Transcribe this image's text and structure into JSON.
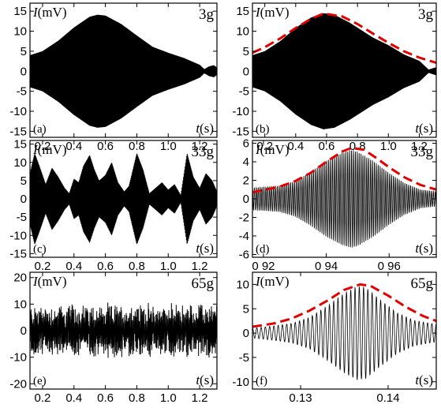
{
  "chart_data": [
    {
      "panel": "(a)",
      "type": "line",
      "label": "3g",
      "ylabel_var": "I",
      "ylabel_unit": "(mV)",
      "xlabel_var": "t",
      "xlabel_unit": "(s)",
      "xlim": [
        0.12,
        1.31
      ],
      "ylim": [
        -16.5,
        17
      ],
      "xticks": [
        0.2,
        0.4,
        0.6,
        0.8,
        1.0,
        1.2
      ],
      "xticklabels": [
        "0.2",
        "0.4",
        "0.6",
        "0.8",
        "1.0",
        "1.2"
      ],
      "yticks": [
        -15,
        -10,
        -5,
        0,
        5,
        10,
        15
      ],
      "yticklabels": [
        "-15",
        "-10",
        "-5",
        "0",
        "5",
        "10",
        "15"
      ],
      "signal": {
        "kind": "dense",
        "envelope_t": [
          0.12,
          0.2,
          0.3,
          0.4,
          0.5,
          0.55,
          0.6,
          0.7,
          0.8,
          0.9,
          1.0,
          1.1,
          1.2,
          1.23,
          1.26,
          1.29,
          1.31
        ],
        "envelope_a": [
          4,
          5,
          7.6,
          10.9,
          13.6,
          14.1,
          13.9,
          11.8,
          8.9,
          6.1,
          4.6,
          3.3,
          1.6,
          0.5,
          1.2,
          1.5,
          0.9
        ]
      }
    },
    {
      "panel": "(b)",
      "type": "line",
      "label": "3g",
      "ylabel_var": "I",
      "ylabel_unit": "(mV)",
      "xlabel_var": "t",
      "xlabel_unit": "(s)",
      "xlim": [
        0.12,
        1.31
      ],
      "ylim": [
        -16.5,
        17
      ],
      "xticks": [
        0.2,
        0.4,
        0.6,
        0.8,
        1.0,
        1.2
      ],
      "xticklabels": [
        "0.2",
        "0.4",
        "0.6",
        "0.8",
        "1.0",
        "1.2"
      ],
      "yticks": [
        -15,
        -10,
        -5,
        0,
        5,
        10,
        15
      ],
      "yticklabels": [
        "-15",
        "-10",
        "-5",
        "0",
        "5",
        "10",
        "15"
      ],
      "signal": {
        "kind": "dense",
        "envelope_t": [
          0.12,
          0.2,
          0.3,
          0.4,
          0.5,
          0.58,
          0.65,
          0.75,
          0.9,
          1.0,
          1.1,
          1.2,
          1.26,
          1.31
        ],
        "envelope_a": [
          4,
          5,
          7.5,
          10.8,
          13.4,
          14.5,
          14.1,
          12.1,
          8.4,
          6.5,
          4.2,
          2.6,
          0.4,
          1.0
        ]
      },
      "fit": {
        "color": "#e00000",
        "x": [
          0.12,
          0.2,
          0.3,
          0.4,
          0.5,
          0.58,
          0.7,
          0.8,
          0.9,
          1.0,
          1.1,
          1.2,
          1.31
        ],
        "y": [
          4.6,
          6.0,
          8.2,
          10.8,
          13.1,
          14.4,
          13.7,
          11.8,
          9.4,
          7.1,
          5.0,
          3.4,
          2.1
        ]
      }
    },
    {
      "panel": "(c)",
      "type": "line",
      "label": "33g",
      "ylabel_var": "I",
      "ylabel_unit": "(mV)",
      "xlabel_var": "t",
      "xlabel_unit": "(s)",
      "xlim": [
        0.12,
        1.31
      ],
      "ylim": [
        -16,
        16
      ],
      "xticks": [
        0.2,
        0.4,
        0.6,
        0.8,
        1.0,
        1.2
      ],
      "xticklabels": [
        "0.2",
        "0.4",
        "0.6",
        "0.8",
        "1.0",
        "1.2"
      ],
      "yticks": [
        -15,
        -10,
        -5,
        0,
        5,
        10,
        15
      ],
      "yticklabels": [
        "-15",
        "-10",
        "-5",
        "0",
        "5",
        "10",
        "15"
      ],
      "signal": {
        "kind": "dense",
        "envelope_t": [
          0.12,
          0.15,
          0.18,
          0.22,
          0.26,
          0.3,
          0.34,
          0.37,
          0.4,
          0.43,
          0.46,
          0.5,
          0.53,
          0.56,
          0.6,
          0.64,
          0.68,
          0.72,
          0.75,
          0.8,
          0.84,
          0.88,
          0.92,
          0.96,
          1.0,
          1.04,
          1.08,
          1.12,
          1.16,
          1.2,
          1.24,
          1.28,
          1.31
        ],
        "envelope_a": [
          7,
          12.5,
          9,
          4,
          8.5,
          6,
          3,
          1.5,
          5.5,
          4.5,
          9,
          12,
          8,
          5,
          6.5,
          10,
          4.5,
          2,
          3.5,
          12.5,
          8,
          1.5,
          3,
          4.5,
          2.5,
          4,
          1,
          12.5,
          6,
          3,
          7,
          5,
          2
        ]
      }
    },
    {
      "panel": "(d)",
      "type": "line",
      "label": "33g",
      "ylabel_var": "I",
      "ylabel_unit": "(mV)",
      "xlabel_var": "t",
      "xlabel_unit": "(s)",
      "xlim": [
        0.9165,
        0.975
      ],
      "ylim": [
        -6.3,
        6.3
      ],
      "xticks": [
        0.92,
        0.94,
        0.96
      ],
      "xticklabels": [
        "0 92",
        "0 94",
        "0 96"
      ],
      "yticks": [
        -6,
        -4,
        -2,
        0,
        2,
        4,
        6
      ],
      "yticklabels": [
        "-6",
        "-4",
        "-2",
        "0",
        "2",
        "4",
        "6"
      ],
      "signal": {
        "kind": "oscillation",
        "freq": 1650,
        "envelope_t": [
          0.9165,
          0.925,
          0.93,
          0.935,
          0.94,
          0.945,
          0.948,
          0.95,
          0.955,
          0.96,
          0.965,
          0.97,
          0.975
        ],
        "envelope_a": [
          1.2,
          1.4,
          1.9,
          2.9,
          4.1,
          5.0,
          5.3,
          5.1,
          4.1,
          2.8,
          1.7,
          1.0,
          0.8
        ]
      },
      "fit": {
        "color": "#e00000",
        "x": [
          0.9165,
          0.925,
          0.93,
          0.935,
          0.94,
          0.945,
          0.948,
          0.952,
          0.956,
          0.96,
          0.965,
          0.97,
          0.975
        ],
        "y": [
          0.7,
          1.3,
          1.9,
          2.8,
          4.0,
          5.1,
          5.5,
          5.3,
          4.4,
          3.4,
          2.3,
          1.5,
          1.0
        ]
      }
    },
    {
      "panel": "(e)",
      "type": "line",
      "label": "65g",
      "ylabel_var": "I",
      "ylabel_unit": "(mV)",
      "xlabel_var": "t",
      "xlabel_unit": "(s)",
      "xlim": [
        0.12,
        1.31
      ],
      "ylim": [
        -22,
        22
      ],
      "xticks": [
        0.2,
        0.4,
        0.6,
        0.8,
        1.0,
        1.2
      ],
      "xticklabels": [
        "0.2",
        "0.4",
        "0.6",
        "0.8",
        "1.0",
        "1.2"
      ],
      "yticks": [
        -20,
        -10,
        0,
        10,
        20
      ],
      "yticklabels": [
        "-20",
        "-10",
        "0",
        "10",
        "20"
      ],
      "signal": {
        "kind": "noisy",
        "envelope_t": [
          0.12,
          1.31
        ],
        "envelope_a": [
          8,
          8
        ]
      }
    },
    {
      "panel": "(f)",
      "type": "line",
      "label": "65g",
      "ylabel_var": "I",
      "ylabel_unit": "(mV)",
      "xlabel_var": "t",
      "xlabel_unit": "(s)",
      "xlim": [
        0.1245,
        0.1455
      ],
      "ylim": [
        -11.5,
        12.5
      ],
      "xticks": [
        0.13,
        0.14
      ],
      "xticklabels": [
        "0.13",
        "0.14"
      ],
      "yticks": [
        -10,
        -5,
        0,
        5,
        10
      ],
      "yticklabels": [
        "-10",
        "-5",
        "0",
        "5",
        "10"
      ],
      "signal": {
        "kind": "oscillation",
        "freq": 2050,
        "envelope_t": [
          0.1245,
          0.127,
          0.129,
          0.131,
          0.133,
          0.135,
          0.1365,
          0.1375,
          0.139,
          0.141,
          0.143,
          0.1455
        ],
        "envelope_a": [
          1.0,
          1.5,
          2.0,
          3.2,
          5.5,
          8.2,
          9.6,
          9.3,
          7.0,
          4.2,
          2.6,
          1.8
        ]
      },
      "fit": {
        "color": "#e00000",
        "x": [
          0.1245,
          0.127,
          0.129,
          0.131,
          0.133,
          0.135,
          0.1368,
          0.138,
          0.14,
          0.142,
          0.144,
          0.1455
        ],
        "y": [
          1.3,
          2.0,
          3.0,
          4.6,
          6.6,
          8.9,
          10.0,
          9.7,
          7.7,
          5.4,
          3.5,
          2.5
        ]
      }
    }
  ]
}
